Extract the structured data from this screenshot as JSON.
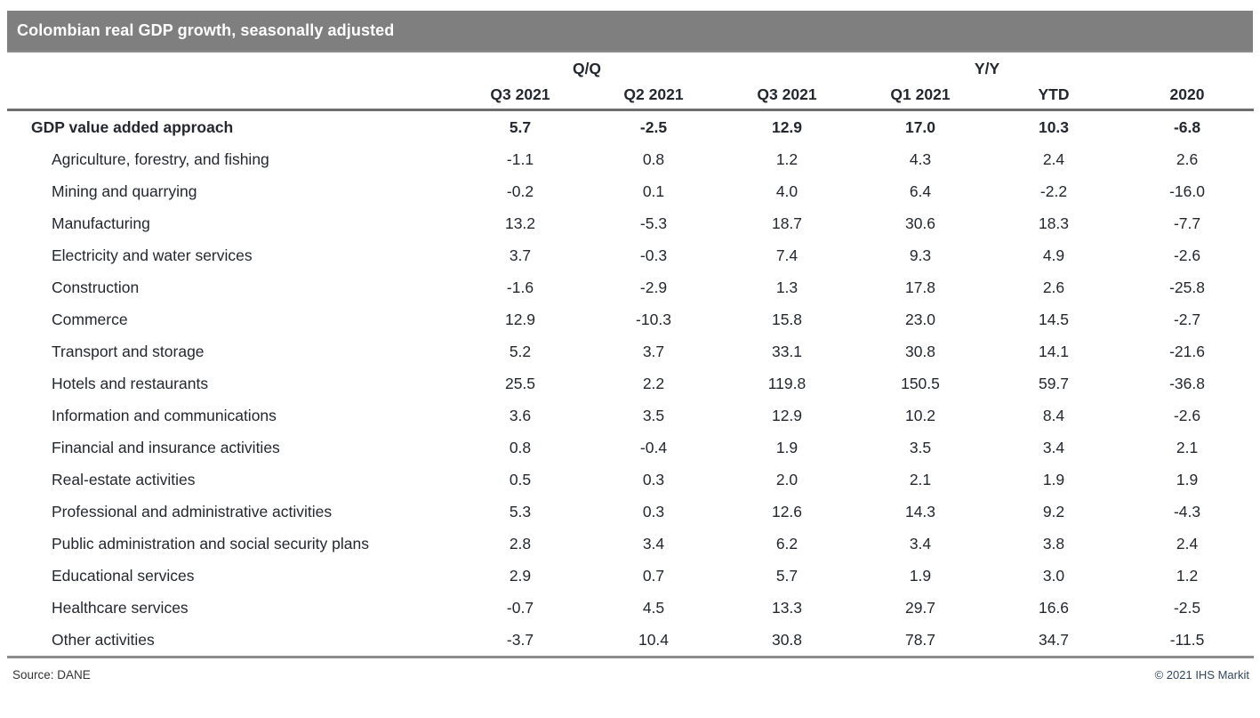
{
  "title": "Colombian real GDP growth, seasonally adjusted",
  "table": {
    "group_headers": [
      {
        "label": "Q/Q",
        "span": 2
      },
      {
        "label": "Y/Y",
        "span": 4
      }
    ],
    "columns": [
      "Q3 2021",
      "Q2 2021",
      "Q3 2021",
      "Q1 2021",
      "YTD",
      "2020"
    ],
    "rows": [
      {
        "label": "GDP value added approach",
        "bold": true,
        "indent": false,
        "values": [
          "5.7",
          "-2.5",
          "12.9",
          "17.0",
          "10.3",
          "-6.8"
        ]
      },
      {
        "label": "Agriculture, forestry, and fishing",
        "bold": false,
        "indent": true,
        "values": [
          "-1.1",
          "0.8",
          "1.2",
          "4.3",
          "2.4",
          "2.6"
        ]
      },
      {
        "label": "Mining and quarrying",
        "bold": false,
        "indent": true,
        "values": [
          "-0.2",
          "0.1",
          "4.0",
          "6.4",
          "-2.2",
          "-16.0"
        ]
      },
      {
        "label": "Manufacturing",
        "bold": false,
        "indent": true,
        "values": [
          "13.2",
          "-5.3",
          "18.7",
          "30.6",
          "18.3",
          "-7.7"
        ]
      },
      {
        "label": "Electricity and water services",
        "bold": false,
        "indent": true,
        "values": [
          "3.7",
          "-0.3",
          "7.4",
          "9.3",
          "4.9",
          "-2.6"
        ]
      },
      {
        "label": "Construction",
        "bold": false,
        "indent": true,
        "values": [
          "-1.6",
          "-2.9",
          "1.3",
          "17.8",
          "2.6",
          "-25.8"
        ]
      },
      {
        "label": "Commerce",
        "bold": false,
        "indent": true,
        "values": [
          "12.9",
          "-10.3",
          "15.8",
          "23.0",
          "14.5",
          "-2.7"
        ]
      },
      {
        "label": "Transport and storage",
        "bold": false,
        "indent": true,
        "values": [
          "5.2",
          "3.7",
          "33.1",
          "30.8",
          "14.1",
          "-21.6"
        ]
      },
      {
        "label": "Hotels and restaurants",
        "bold": false,
        "indent": true,
        "values": [
          "25.5",
          "2.2",
          "119.8",
          "150.5",
          "59.7",
          "-36.8"
        ]
      },
      {
        "label": "Information and communications",
        "bold": false,
        "indent": true,
        "values": [
          "3.6",
          "3.5",
          "12.9",
          "10.2",
          "8.4",
          "-2.6"
        ]
      },
      {
        "label": "Financial and insurance activities",
        "bold": false,
        "indent": true,
        "values": [
          "0.8",
          "-0.4",
          "1.9",
          "3.5",
          "3.4",
          "2.1"
        ]
      },
      {
        "label": "Real-estate activities",
        "bold": false,
        "indent": true,
        "values": [
          "0.5",
          "0.3",
          "2.0",
          "2.1",
          "1.9",
          "1.9"
        ]
      },
      {
        "label": "Professional and administrative activities",
        "bold": false,
        "indent": true,
        "values": [
          "5.3",
          "0.3",
          "12.6",
          "14.3",
          "9.2",
          "-4.3"
        ]
      },
      {
        "label": "Public administration and social security plans",
        "bold": false,
        "indent": true,
        "values": [
          "2.8",
          "3.4",
          "6.2",
          "3.4",
          "3.8",
          "2.4"
        ]
      },
      {
        "label": "Educational services",
        "bold": false,
        "indent": true,
        "values": [
          "2.9",
          "0.7",
          "5.7",
          "1.9",
          "3.0",
          "1.2"
        ]
      },
      {
        "label": "Healthcare services",
        "bold": false,
        "indent": true,
        "values": [
          "-0.7",
          "4.5",
          "13.3",
          "29.7",
          "16.6",
          "-2.5"
        ]
      },
      {
        "label": "Other activities",
        "bold": false,
        "indent": true,
        "values": [
          "-3.7",
          "10.4",
          "30.8",
          "78.7",
          "34.7",
          "-11.5"
        ]
      }
    ]
  },
  "footer": {
    "source": "Source: DANE",
    "copyright": "© 2021 IHS Markit"
  },
  "colors": {
    "title_bar": "#7f7f7f",
    "title_text": "#ffffff",
    "body_text": "#23282f",
    "rule": "#6f6f6f",
    "copyright_text": "#33475f"
  },
  "chart_data": {
    "type": "table",
    "title": "Colombian real GDP growth, seasonally adjusted",
    "column_groups": {
      "Q/Q": [
        "Q3 2021",
        "Q2 2021"
      ],
      "Y/Y": [
        "Q3 2021",
        "Q1 2021",
        "YTD",
        "2020"
      ]
    },
    "categories": [
      "GDP value added approach",
      "Agriculture, forestry, and fishing",
      "Mining and quarrying",
      "Manufacturing",
      "Electricity and water services",
      "Construction",
      "Commerce",
      "Transport and storage",
      "Hotels and restaurants",
      "Information and communications",
      "Financial and insurance activities",
      "Real-estate activities",
      "Professional and administrative activities",
      "Public administration and social security plans",
      "Educational services",
      "Healthcare services",
      "Other activities"
    ],
    "series": [
      {
        "name": "Q/Q Q3 2021",
        "values": [
          5.7,
          -1.1,
          -0.2,
          13.2,
          3.7,
          -1.6,
          12.9,
          5.2,
          25.5,
          3.6,
          0.8,
          0.5,
          5.3,
          2.8,
          2.9,
          -0.7,
          -3.7
        ]
      },
      {
        "name": "Q/Q Q2 2021",
        "values": [
          -2.5,
          0.8,
          0.1,
          -5.3,
          -0.3,
          -2.9,
          -10.3,
          3.7,
          2.2,
          3.5,
          -0.4,
          0.3,
          0.3,
          3.4,
          0.7,
          4.5,
          10.4
        ]
      },
      {
        "name": "Y/Y Q3 2021",
        "values": [
          12.9,
          1.2,
          4.0,
          18.7,
          7.4,
          1.3,
          15.8,
          33.1,
          119.8,
          12.9,
          1.9,
          2.0,
          12.6,
          6.2,
          5.7,
          13.3,
          30.8
        ]
      },
      {
        "name": "Y/Y Q1 2021",
        "values": [
          17.0,
          4.3,
          6.4,
          30.6,
          9.3,
          17.8,
          23.0,
          30.8,
          150.5,
          10.2,
          3.5,
          2.1,
          14.3,
          3.4,
          1.9,
          29.7,
          78.7
        ]
      },
      {
        "name": "YTD",
        "values": [
          10.3,
          2.4,
          -2.2,
          18.3,
          4.9,
          2.6,
          14.5,
          14.1,
          59.7,
          8.4,
          3.4,
          1.9,
          9.2,
          3.8,
          3.0,
          16.6,
          34.7
        ]
      },
      {
        "name": "2020",
        "values": [
          -6.8,
          2.6,
          -16.0,
          -7.7,
          -2.6,
          -25.8,
          -2.7,
          -21.6,
          -36.8,
          -2.6,
          2.1,
          1.9,
          -4.3,
          2.4,
          1.2,
          -2.5,
          -11.5
        ]
      }
    ],
    "source": "DANE"
  }
}
